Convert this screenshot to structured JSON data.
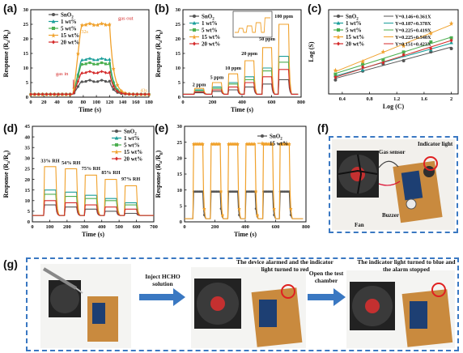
{
  "colors": {
    "sno2": "#555555",
    "wt1": "#1a9e9a",
    "wt5": "#4caf50",
    "wt15": "#f0a12b",
    "wt20": "#d42a2a",
    "border": "#3a78c2"
  },
  "panel_labels": [
    "(a)",
    "(b)",
    "(c)",
    "(d)",
    "(e)",
    "(f)",
    "(g)"
  ],
  "legend": {
    "sno2": "SnO",
    "sno2_sub": "2",
    "wt1": "1 wt%",
    "wt5": "5 wt%",
    "wt15": "15 wt%",
    "wt20": "20 wt%"
  },
  "axes": {
    "time": "Time (s)",
    "response_main": "Response (R",
    "response_a": "a",
    "response_mid": "/R",
    "response_g": "g",
    "response_end": ")",
    "logc": "Log (C)",
    "logs": "Log (S)"
  },
  "annot_a": {
    "gas_in": "gas in",
    "gas_out": "gas out",
    "t1": "32s",
    "t2": "43s"
  },
  "annot_b": [
    "2 ppm",
    "5 ppm",
    "10 ppm",
    "20 ppm",
    "50 ppm",
    "100 ppm"
  ],
  "annot_d": [
    "33% RH",
    "54% RH",
    "75% RH",
    "85% RH",
    "97% RH"
  ],
  "fits_c": [
    "Y=0.146+0.361X",
    "Y=0.187+0.378X",
    "Y=0.225+0.419X",
    "Y=0.225+0.540X",
    "Y=0.151+0.423X"
  ],
  "photo_f": {
    "indicator": "Indicator light",
    "gas_sensor": "Gas sensor",
    "buzzer": "Buzzer",
    "fan": "Fan"
  },
  "photo_g": {
    "inject": "Inject HCHO solution",
    "alarm": "The device alarmed and the indicator light turned to red",
    "open": "Open the test chamber",
    "stopped": "The indicator light turned to blue and the alarm stopped"
  },
  "chart_data": [
    {
      "panel": "a",
      "type": "line",
      "xlabel": "Time (s)",
      "ylabel": "Response (Ra/Rg)",
      "xlim": [
        0,
        180
      ],
      "ylim": [
        0,
        30
      ],
      "xticks": [
        0,
        20,
        40,
        60,
        80,
        100,
        120,
        140,
        160,
        180
      ],
      "yticks": [
        0,
        5,
        10,
        15,
        20,
        25,
        30
      ],
      "series": [
        {
          "name": "SnO2",
          "plateau": 5.5
        },
        {
          "name": "1 wt%",
          "plateau": 13.0
        },
        {
          "name": "5 wt%",
          "plateau": 11.5
        },
        {
          "name": "15 wt%",
          "plateau": 25.0
        },
        {
          "name": "20 wt%",
          "plateau": 8.5
        }
      ],
      "gas_on": 65,
      "gas_off": 120,
      "baseline": 1.0
    },
    {
      "panel": "b",
      "type": "line",
      "xlabel": "Time (s)",
      "ylabel": "Response (Ra/Rg)",
      "xlim": [
        0,
        800
      ],
      "ylim": [
        0,
        30
      ],
      "xticks": [
        0,
        200,
        400,
        600,
        800
      ],
      "yticks": [
        0,
        5,
        10,
        15,
        20,
        25,
        30
      ],
      "pulses": [
        [
          80,
          140
        ],
        [
          200,
          260
        ],
        [
          310,
          370
        ],
        [
          420,
          480
        ],
        [
          540,
          600
        ],
        [
          650,
          715
        ]
      ],
      "series": [
        {
          "name": "SnO2",
          "peaks": [
            1.5,
            2.0,
            2.5,
            3.5,
            4.5,
            6.0
          ]
        },
        {
          "name": "1 wt%",
          "peaks": [
            2.5,
            3.5,
            5.0,
            7.0,
            10.0,
            14.0
          ]
        },
        {
          "name": "5 wt%",
          "peaks": [
            2.2,
            3.0,
            4.5,
            6.0,
            9.0,
            12.0
          ]
        },
        {
          "name": "15 wt%",
          "peaks": [
            3.0,
            5.0,
            8.0,
            12.5,
            17.0,
            25.0
          ]
        },
        {
          "name": "20 wt%",
          "peaks": [
            1.8,
            2.5,
            3.5,
            5.0,
            7.0,
            9.5
          ]
        }
      ]
    },
    {
      "panel": "c",
      "type": "scatter",
      "xlabel": "Log (C)",
      "ylabel": "Log (S)",
      "xlim": [
        0.2,
        2.1
      ],
      "ylim": [
        -0.05,
        1.6
      ],
      "xticks": [
        0.4,
        0.8,
        1.2,
        1.6,
        2.0
      ],
      "x": [
        0.3,
        0.7,
        1.0,
        1.3,
        1.7,
        2.0
      ],
      "series": [
        {
          "name": "SnO2",
          "intercept": 0.146,
          "slope": 0.361
        },
        {
          "name": "1 wt%",
          "intercept": 0.187,
          "slope": 0.378
        },
        {
          "name": "5 wt%",
          "intercept": 0.225,
          "slope": 0.419
        },
        {
          "name": "15 wt%",
          "intercept": 0.225,
          "slope": 0.54
        },
        {
          "name": "20 wt%",
          "intercept": 0.151,
          "slope": 0.423
        }
      ]
    },
    {
      "panel": "d",
      "type": "line",
      "xlabel": "Time (s)",
      "ylabel": "Response (Ra/Rg)",
      "xlim": [
        0,
        700
      ],
      "ylim": [
        0,
        45
      ],
      "xticks": [
        0,
        100,
        200,
        300,
        400,
        500,
        600,
        700
      ],
      "yticks": [
        0,
        5,
        10,
        15,
        20,
        25,
        30,
        35,
        40,
        45
      ],
      "pulses": [
        [
          70,
          135
        ],
        [
          190,
          255
        ],
        [
          305,
          370
        ],
        [
          420,
          485
        ],
        [
          535,
          600
        ]
      ],
      "series": [
        {
          "name": "SnO2",
          "peaks": [
            8.0,
            7.0,
            6.0,
            5.0,
            4.0
          ]
        },
        {
          "name": "1 wt%",
          "peaks": [
            15.0,
            14.0,
            12.5,
            11.0,
            9.0
          ]
        },
        {
          "name": "5 wt%",
          "peaks": [
            13.0,
            12.0,
            11.0,
            10.0,
            8.0
          ]
        },
        {
          "name": "15 wt%",
          "peaks": [
            26.0,
            25.0,
            22.0,
            20.0,
            17.0
          ]
        },
        {
          "name": "20 wt%",
          "peaks": [
            10.0,
            9.0,
            8.0,
            7.0,
            6.0
          ]
        }
      ]
    },
    {
      "panel": "e",
      "type": "line",
      "xlabel": "Time (s)",
      "ylabel": "Response (Ra/Rg)",
      "xlim": [
        0,
        800
      ],
      "ylim": [
        0,
        30
      ],
      "xticks": [
        0,
        200,
        400,
        600,
        800
      ],
      "yticks": [
        0,
        5,
        10,
        15,
        20,
        25,
        30
      ],
      "pulses": [
        [
          60,
          120
        ],
        [
          175,
          235
        ],
        [
          290,
          350
        ],
        [
          405,
          465
        ],
        [
          520,
          580
        ],
        [
          630,
          690
        ]
      ],
      "series": [
        {
          "name": "SnO2",
          "peak": 9.5
        },
        {
          "name": "15 wt%",
          "peak": 24.5
        }
      ]
    }
  ]
}
